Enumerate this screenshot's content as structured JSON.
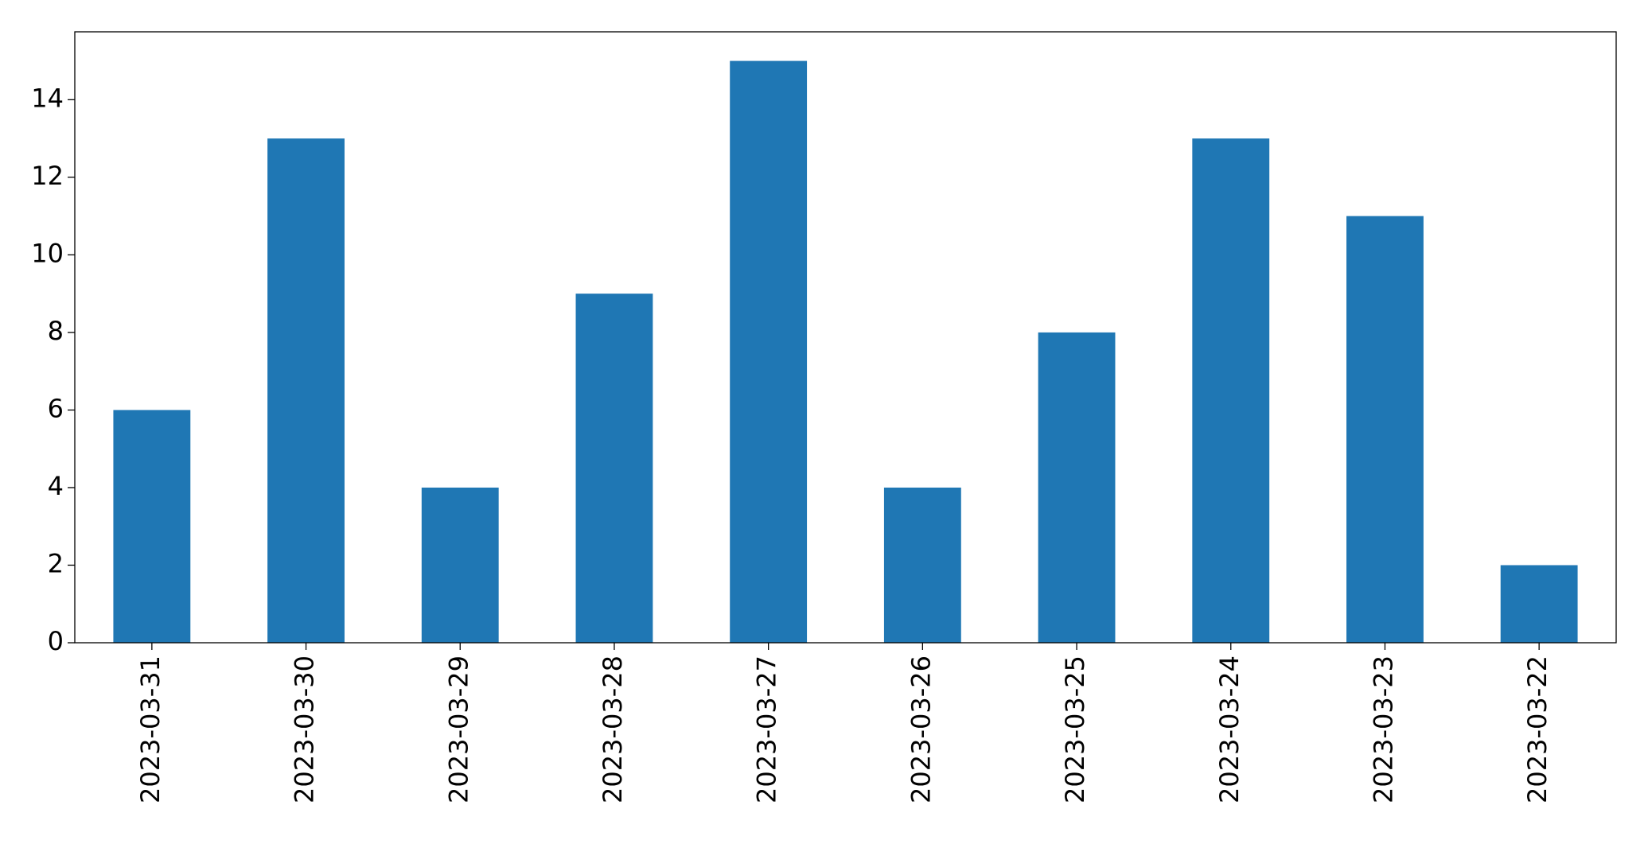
{
  "chart_data": {
    "type": "bar",
    "categories": [
      "2023-03-31",
      "2023-03-30",
      "2023-03-29",
      "2023-03-28",
      "2023-03-27",
      "2023-03-26",
      "2023-03-25",
      "2023-03-24",
      "2023-03-23",
      "2023-03-22"
    ],
    "values": [
      6,
      13,
      4,
      9,
      15,
      4,
      8,
      13,
      11,
      2
    ],
    "color": "#1f77b4",
    "ylim": [
      0,
      15.75
    ],
    "yticks": [
      0,
      2,
      4,
      6,
      8,
      10,
      12,
      14
    ],
    "grid": false
  }
}
